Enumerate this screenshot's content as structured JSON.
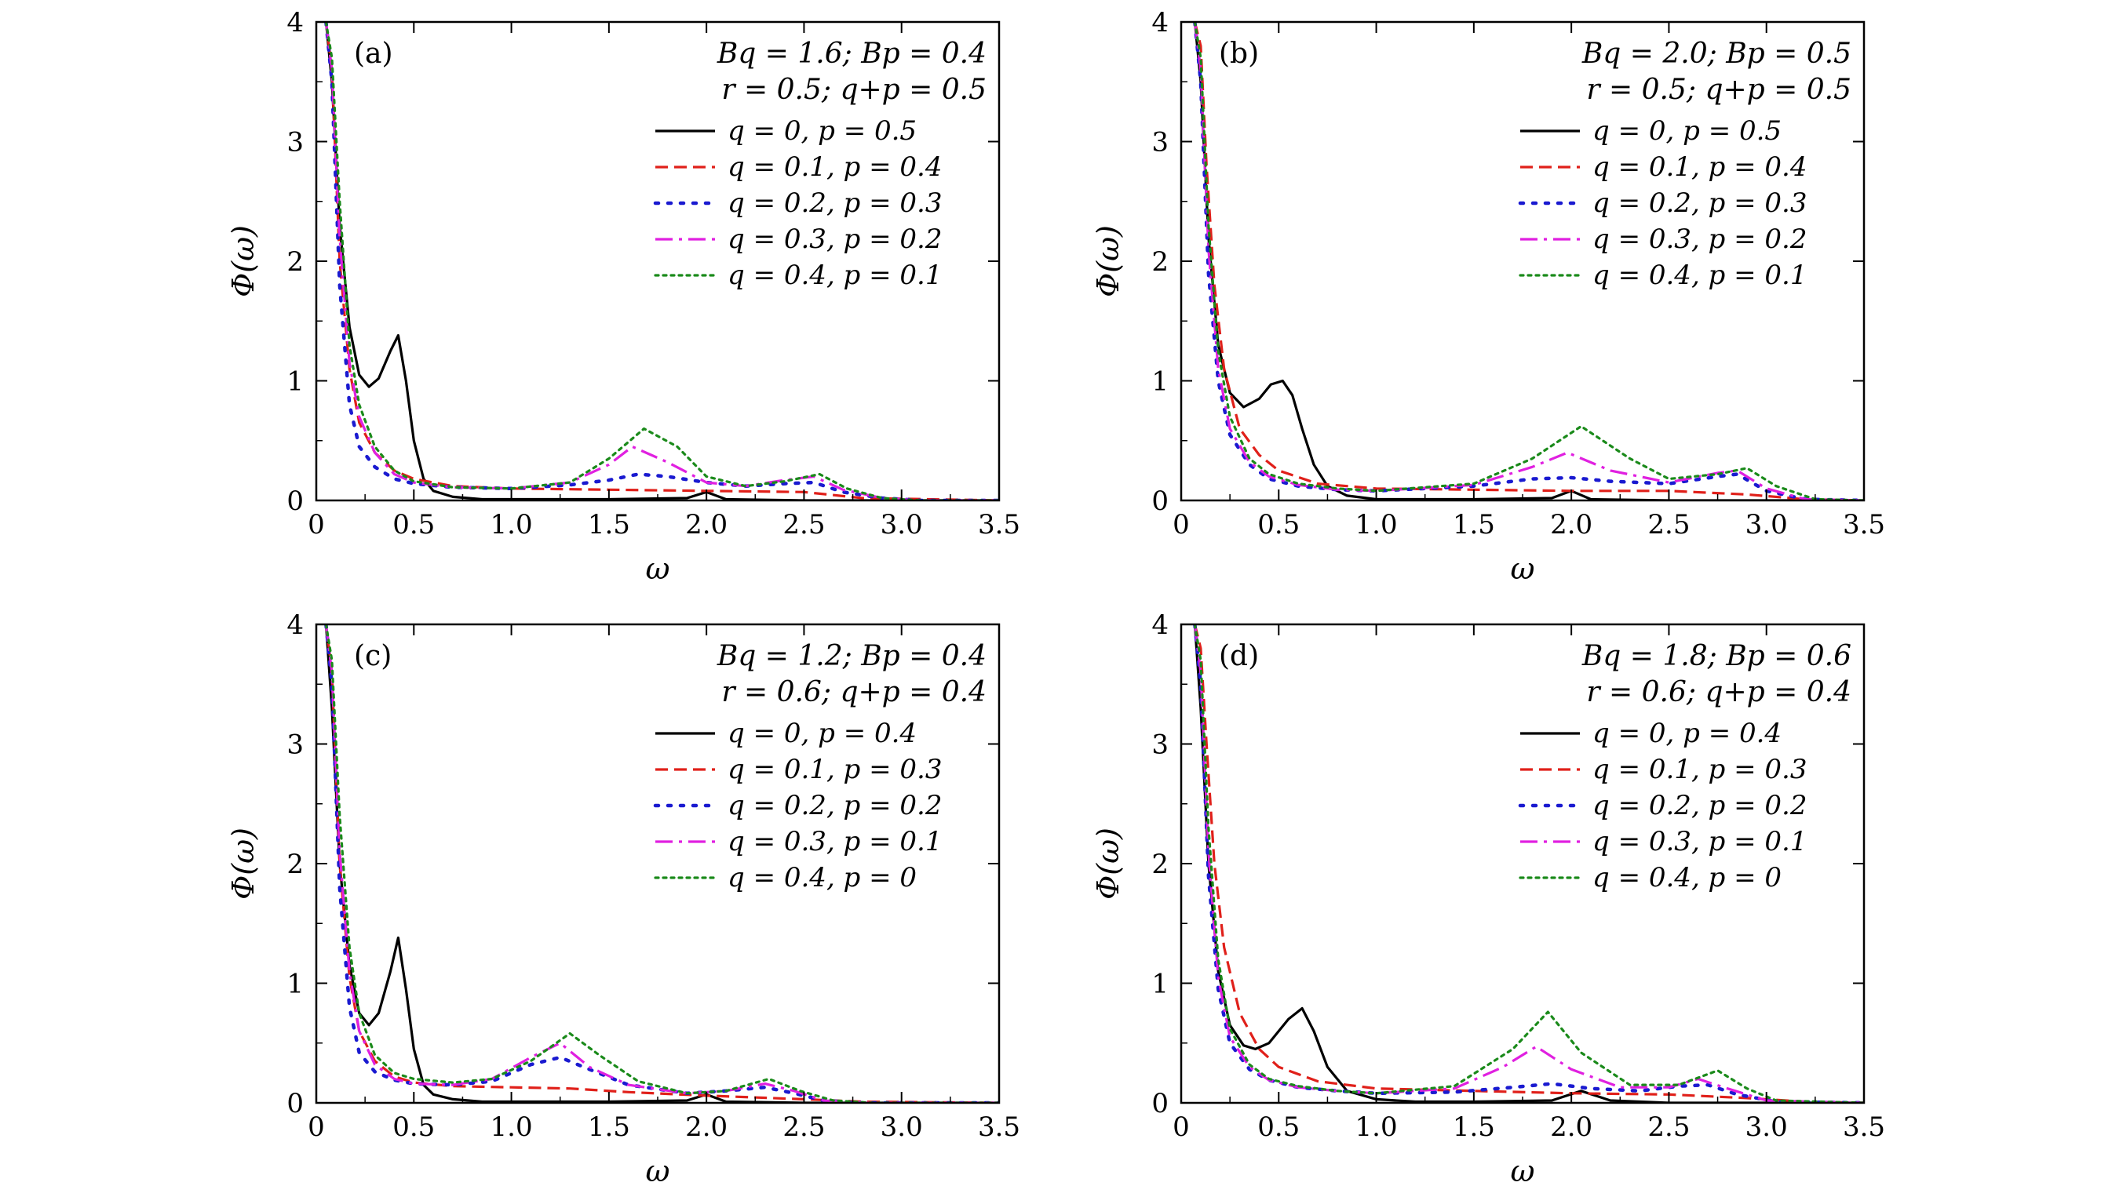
{
  "figure": {
    "description_label": "Phi(omega) vs omega, four panels"
  },
  "chart_data": [
    {
      "type": "line",
      "panel_label": "(a)",
      "param_line1": "Bq = 1.6;  Bp = 0.4",
      "param_line2": "r = 0.5;  q+p = 0.5",
      "xlabel": "ω",
      "ylabel": "Φ(ω)",
      "xlim": [
        0,
        3.5
      ],
      "ylim": [
        0,
        4
      ],
      "xticks": [
        "0",
        "0.5",
        "1.0",
        "1.5",
        "2.0",
        "2.5",
        "3.0",
        "3.5"
      ],
      "yticks": [
        "0",
        "1",
        "2",
        "3",
        "4"
      ],
      "series": [
        {
          "name": "q = 0,  p = 0.5",
          "color": "#000000",
          "style": "solid",
          "x": [
            0.05,
            0.08,
            0.12,
            0.17,
            0.22,
            0.27,
            0.32,
            0.38,
            0.42,
            0.46,
            0.5,
            0.55,
            0.6,
            0.7,
            0.85,
            1.0,
            1.5,
            1.9,
            2.0,
            2.1,
            2.5,
            3.5
          ],
          "y": [
            4.0,
            3.5,
            2.3,
            1.45,
            1.05,
            0.95,
            1.02,
            1.25,
            1.38,
            1.0,
            0.5,
            0.18,
            0.08,
            0.03,
            0.01,
            0.01,
            0.01,
            0.02,
            0.07,
            0.01,
            0.0,
            0.0
          ]
        },
        {
          "name": "q = 0.1,  p = 0.4",
          "color": "#e0201a",
          "style": "dashed",
          "x": [
            0.05,
            0.08,
            0.12,
            0.17,
            0.22,
            0.3,
            0.4,
            0.5,
            0.7,
            1.0,
            1.5,
            2.0,
            2.5,
            2.8,
            3.5
          ],
          "y": [
            4.0,
            3.6,
            2.0,
            1.1,
            0.65,
            0.4,
            0.25,
            0.18,
            0.12,
            0.1,
            0.09,
            0.08,
            0.07,
            0.02,
            0.0
          ]
        },
        {
          "name": "q = 0.2,  p = 0.3",
          "color": "#1a1ad0",
          "style": "dotted",
          "x": [
            0.05,
            0.08,
            0.12,
            0.17,
            0.22,
            0.3,
            0.4,
            0.5,
            0.7,
            1.0,
            1.3,
            1.5,
            1.65,
            1.8,
            2.0,
            2.2,
            2.4,
            2.55,
            2.7,
            2.9,
            3.1,
            3.5
          ],
          "y": [
            4.0,
            3.5,
            1.8,
            0.8,
            0.45,
            0.28,
            0.18,
            0.14,
            0.11,
            0.1,
            0.13,
            0.17,
            0.22,
            0.2,
            0.15,
            0.12,
            0.14,
            0.15,
            0.07,
            0.02,
            0.0,
            0.0
          ]
        },
        {
          "name": "q = 0.3,  p = 0.2",
          "color": "#e020e0",
          "style": "dashdot",
          "x": [
            0.05,
            0.08,
            0.12,
            0.17,
            0.22,
            0.3,
            0.4,
            0.5,
            0.7,
            1.0,
            1.3,
            1.5,
            1.62,
            1.8,
            2.0,
            2.2,
            2.4,
            2.55,
            2.7,
            2.9,
            3.1,
            3.5
          ],
          "y": [
            4.0,
            3.6,
            2.2,
            1.15,
            0.7,
            0.4,
            0.22,
            0.15,
            0.11,
            0.1,
            0.15,
            0.3,
            0.45,
            0.32,
            0.15,
            0.12,
            0.17,
            0.2,
            0.09,
            0.02,
            0.0,
            0.0
          ]
        },
        {
          "name": "q = 0.4,  p = 0.1",
          "color": "#1a8a1a",
          "style": "finedot",
          "x": [
            0.05,
            0.08,
            0.12,
            0.17,
            0.22,
            0.3,
            0.4,
            0.5,
            0.7,
            1.0,
            1.3,
            1.5,
            1.68,
            1.85,
            2.0,
            2.2,
            2.4,
            2.58,
            2.72,
            2.9,
            3.1,
            3.5
          ],
          "y": [
            4.0,
            3.7,
            2.5,
            1.3,
            0.8,
            0.45,
            0.25,
            0.16,
            0.11,
            0.1,
            0.15,
            0.35,
            0.6,
            0.45,
            0.2,
            0.12,
            0.16,
            0.22,
            0.1,
            0.02,
            0.0,
            0.0
          ]
        }
      ]
    },
    {
      "type": "line",
      "panel_label": "(b)",
      "param_line1": "Bq = 2.0;  Bp = 0.5",
      "param_line2": "r = 0.5;  q+p = 0.5",
      "xlabel": "ω",
      "ylabel": "Φ(ω)",
      "xlim": [
        0,
        3.5
      ],
      "ylim": [
        0,
        4
      ],
      "xticks": [
        "0",
        "0.5",
        "1.0",
        "1.5",
        "2.0",
        "2.5",
        "3.0",
        "3.5"
      ],
      "yticks": [
        "0",
        "1",
        "2",
        "3",
        "4"
      ],
      "series": [
        {
          "name": "q = 0,  p = 0.5",
          "color": "#000000",
          "style": "solid",
          "x": [
            0.07,
            0.1,
            0.14,
            0.19,
            0.25,
            0.32,
            0.4,
            0.46,
            0.52,
            0.57,
            0.62,
            0.68,
            0.75,
            0.85,
            1.0,
            1.5,
            1.9,
            2.0,
            2.1,
            2.5,
            3.5
          ],
          "y": [
            4.0,
            3.5,
            2.2,
            1.3,
            0.9,
            0.78,
            0.85,
            0.97,
            1.0,
            0.88,
            0.6,
            0.3,
            0.12,
            0.04,
            0.01,
            0.01,
            0.02,
            0.08,
            0.01,
            0.0,
            0.0
          ]
        },
        {
          "name": "q = 0.1,  p = 0.4",
          "color": "#e0201a",
          "style": "dashed",
          "x": [
            0.07,
            0.1,
            0.13,
            0.17,
            0.22,
            0.3,
            0.4,
            0.5,
            0.7,
            1.0,
            1.5,
            2.0,
            2.5,
            2.9,
            3.2,
            3.5
          ],
          "y": [
            4.0,
            3.8,
            2.8,
            1.8,
            1.1,
            0.6,
            0.38,
            0.25,
            0.14,
            0.1,
            0.09,
            0.08,
            0.08,
            0.05,
            0.01,
            0.0
          ]
        },
        {
          "name": "q = 0.2,  p = 0.3",
          "color": "#1a1ad0",
          "style": "dotted",
          "x": [
            0.07,
            0.1,
            0.14,
            0.19,
            0.25,
            0.35,
            0.45,
            0.6,
            0.8,
            1.0,
            1.5,
            1.8,
            2.0,
            2.2,
            2.5,
            2.75,
            2.85,
            3.0,
            3.2,
            3.5
          ],
          "y": [
            4.0,
            3.5,
            1.9,
            1.0,
            0.55,
            0.3,
            0.18,
            0.12,
            0.09,
            0.08,
            0.12,
            0.18,
            0.19,
            0.16,
            0.14,
            0.2,
            0.22,
            0.08,
            0.01,
            0.0
          ]
        },
        {
          "name": "q = 0.3,  p = 0.2",
          "color": "#e020e0",
          "style": "dashdot",
          "x": [
            0.07,
            0.1,
            0.14,
            0.19,
            0.25,
            0.35,
            0.45,
            0.6,
            0.8,
            1.0,
            1.5,
            1.8,
            1.98,
            2.2,
            2.5,
            2.75,
            2.85,
            3.0,
            3.2,
            3.5
          ],
          "y": [
            4.0,
            3.6,
            2.1,
            1.1,
            0.6,
            0.32,
            0.2,
            0.13,
            0.09,
            0.08,
            0.13,
            0.28,
            0.4,
            0.25,
            0.15,
            0.23,
            0.25,
            0.1,
            0.01,
            0.0
          ]
        },
        {
          "name": "q = 0.4,  p = 0.1",
          "color": "#1a8a1a",
          "style": "finedot",
          "x": [
            0.07,
            0.1,
            0.14,
            0.19,
            0.25,
            0.35,
            0.45,
            0.6,
            0.8,
            1.0,
            1.5,
            1.8,
            2.05,
            2.3,
            2.5,
            2.75,
            2.9,
            3.05,
            3.25,
            3.5
          ],
          "y": [
            4.0,
            3.7,
            2.3,
            1.25,
            0.7,
            0.35,
            0.22,
            0.14,
            0.1,
            0.08,
            0.14,
            0.35,
            0.62,
            0.35,
            0.18,
            0.22,
            0.27,
            0.12,
            0.01,
            0.0
          ]
        }
      ]
    },
    {
      "type": "line",
      "panel_label": "(c)",
      "param_line1": "Bq = 1.2;  Bp = 0.4",
      "param_line2": "r = 0.6;  q+p = 0.4",
      "xlabel": "ω",
      "ylabel": "Φ(ω)",
      "xlim": [
        0,
        3.5
      ],
      "ylim": [
        0,
        4
      ],
      "xticks": [
        "0",
        "0.5",
        "1.0",
        "1.5",
        "2.0",
        "2.5",
        "3.0",
        "3.5"
      ],
      "yticks": [
        "0",
        "1",
        "2",
        "3",
        "4"
      ],
      "series": [
        {
          "name": "q = 0,  p = 0.4",
          "color": "#000000",
          "style": "solid",
          "x": [
            0.05,
            0.08,
            0.12,
            0.17,
            0.22,
            0.27,
            0.32,
            0.38,
            0.42,
            0.46,
            0.5,
            0.55,
            0.6,
            0.7,
            0.85,
            1.0,
            1.5,
            1.9,
            2.0,
            2.1,
            2.5,
            3.5
          ],
          "y": [
            4.0,
            3.3,
            2.0,
            1.15,
            0.75,
            0.65,
            0.75,
            1.1,
            1.38,
            0.95,
            0.45,
            0.15,
            0.07,
            0.03,
            0.01,
            0.01,
            0.01,
            0.02,
            0.07,
            0.01,
            0.0,
            0.0
          ]
        },
        {
          "name": "q = 0.1,  p = 0.3",
          "color": "#e0201a",
          "style": "dashed",
          "x": [
            0.05,
            0.08,
            0.12,
            0.17,
            0.22,
            0.3,
            0.4,
            0.5,
            0.7,
            1.0,
            1.3,
            1.6,
            2.0,
            2.5,
            2.8,
            3.5
          ],
          "y": [
            4.0,
            3.6,
            2.0,
            1.05,
            0.6,
            0.35,
            0.22,
            0.17,
            0.14,
            0.13,
            0.12,
            0.09,
            0.06,
            0.03,
            0.01,
            0.0
          ]
        },
        {
          "name": "q = 0.2,  p = 0.2",
          "color": "#1a1ad0",
          "style": "dotted",
          "x": [
            0.05,
            0.08,
            0.12,
            0.17,
            0.22,
            0.3,
            0.4,
            0.5,
            0.7,
            0.9,
            1.1,
            1.25,
            1.4,
            1.6,
            1.9,
            2.1,
            2.3,
            2.45,
            2.6,
            2.8,
            3.5
          ],
          "y": [
            4.0,
            3.5,
            1.8,
            0.8,
            0.42,
            0.26,
            0.19,
            0.16,
            0.15,
            0.18,
            0.32,
            0.38,
            0.28,
            0.15,
            0.08,
            0.1,
            0.13,
            0.08,
            0.02,
            0.0,
            0.0
          ]
        },
        {
          "name": "q = 0.3,  p = 0.1",
          "color": "#e020e0",
          "style": "dashdot",
          "x": [
            0.05,
            0.08,
            0.12,
            0.17,
            0.22,
            0.3,
            0.4,
            0.5,
            0.7,
            0.9,
            1.1,
            1.25,
            1.4,
            1.6,
            1.9,
            2.1,
            2.3,
            2.45,
            2.6,
            2.8,
            3.5
          ],
          "y": [
            4.0,
            3.6,
            2.1,
            1.1,
            0.6,
            0.32,
            0.2,
            0.16,
            0.15,
            0.2,
            0.38,
            0.5,
            0.3,
            0.15,
            0.08,
            0.1,
            0.16,
            0.1,
            0.02,
            0.0,
            0.0
          ]
        },
        {
          "name": "q = 0.4,  p = 0",
          "color": "#1a8a1a",
          "style": "finedot",
          "x": [
            0.05,
            0.08,
            0.12,
            0.17,
            0.22,
            0.3,
            0.4,
            0.5,
            0.7,
            0.9,
            1.1,
            1.3,
            1.45,
            1.65,
            1.9,
            2.1,
            2.32,
            2.48,
            2.65,
            2.85,
            3.5
          ],
          "y": [
            4.0,
            3.7,
            2.4,
            1.3,
            0.75,
            0.4,
            0.25,
            0.2,
            0.17,
            0.2,
            0.35,
            0.58,
            0.4,
            0.18,
            0.08,
            0.1,
            0.2,
            0.1,
            0.02,
            0.0,
            0.0
          ]
        }
      ]
    },
    {
      "type": "line",
      "panel_label": "(d)",
      "param_line1": "Bq = 1.8;  Bp = 0.6",
      "param_line2": "r = 0.6;  q+p = 0.4",
      "xlabel": "ω",
      "ylabel": "Φ(ω)",
      "xlim": [
        0,
        3.5
      ],
      "ylim": [
        0,
        4
      ],
      "xticks": [
        "0",
        "0.5",
        "1.0",
        "1.5",
        "2.0",
        "2.5",
        "3.0",
        "3.5"
      ],
      "yticks": [
        "0",
        "1",
        "2",
        "3",
        "4"
      ],
      "series": [
        {
          "name": "q = 0,  p = 0.4",
          "color": "#000000",
          "style": "solid",
          "x": [
            0.07,
            0.1,
            0.14,
            0.19,
            0.25,
            0.32,
            0.38,
            0.45,
            0.55,
            0.62,
            0.68,
            0.75,
            0.85,
            1.0,
            1.2,
            1.5,
            1.9,
            2.05,
            2.2,
            2.5,
            3.5
          ],
          "y": [
            4.0,
            3.3,
            2.0,
            1.1,
            0.65,
            0.48,
            0.45,
            0.5,
            0.7,
            0.79,
            0.6,
            0.3,
            0.1,
            0.03,
            0.01,
            0.01,
            0.02,
            0.1,
            0.02,
            0.0,
            0.0
          ]
        },
        {
          "name": "q = 0.1,  p = 0.3",
          "color": "#e0201a",
          "style": "dashed",
          "x": [
            0.07,
            0.1,
            0.13,
            0.17,
            0.22,
            0.3,
            0.4,
            0.5,
            0.7,
            1.0,
            1.5,
            2.0,
            2.5,
            2.9,
            3.2,
            3.5
          ],
          "y": [
            4.0,
            3.8,
            3.0,
            2.0,
            1.3,
            0.75,
            0.45,
            0.3,
            0.18,
            0.12,
            0.1,
            0.08,
            0.07,
            0.04,
            0.01,
            0.0
          ]
        },
        {
          "name": "q = 0.2,  p = 0.2",
          "color": "#1a1ad0",
          "style": "dotted",
          "x": [
            0.07,
            0.1,
            0.14,
            0.19,
            0.25,
            0.35,
            0.45,
            0.6,
            0.8,
            1.0,
            1.4,
            1.7,
            1.9,
            2.1,
            2.35,
            2.55,
            2.7,
            2.85,
            3.05,
            3.5
          ],
          "y": [
            4.0,
            3.5,
            1.9,
            0.95,
            0.5,
            0.28,
            0.19,
            0.13,
            0.1,
            0.08,
            0.09,
            0.13,
            0.16,
            0.12,
            0.1,
            0.14,
            0.15,
            0.07,
            0.01,
            0.0
          ]
        },
        {
          "name": "q = 0.3,  p = 0.1",
          "color": "#e020e0",
          "style": "dashdot",
          "x": [
            0.07,
            0.1,
            0.14,
            0.19,
            0.25,
            0.35,
            0.45,
            0.6,
            0.8,
            1.0,
            1.4,
            1.65,
            1.82,
            2.0,
            2.25,
            2.5,
            2.65,
            2.8,
            3.0,
            3.5
          ],
          "y": [
            4.0,
            3.6,
            2.1,
            1.05,
            0.55,
            0.3,
            0.19,
            0.13,
            0.1,
            0.08,
            0.12,
            0.3,
            0.47,
            0.28,
            0.13,
            0.13,
            0.2,
            0.12,
            0.02,
            0.0
          ]
        },
        {
          "name": "q = 0.4,  p = 0",
          "color": "#1a8a1a",
          "style": "finedot",
          "x": [
            0.07,
            0.1,
            0.14,
            0.19,
            0.25,
            0.35,
            0.45,
            0.6,
            0.8,
            1.0,
            1.4,
            1.7,
            1.88,
            2.05,
            2.3,
            2.55,
            2.75,
            2.9,
            3.05,
            3.5
          ],
          "y": [
            4.0,
            3.7,
            2.3,
            1.2,
            0.62,
            0.32,
            0.2,
            0.14,
            0.1,
            0.08,
            0.14,
            0.45,
            0.76,
            0.42,
            0.15,
            0.15,
            0.27,
            0.12,
            0.02,
            0.0
          ]
        }
      ]
    }
  ]
}
